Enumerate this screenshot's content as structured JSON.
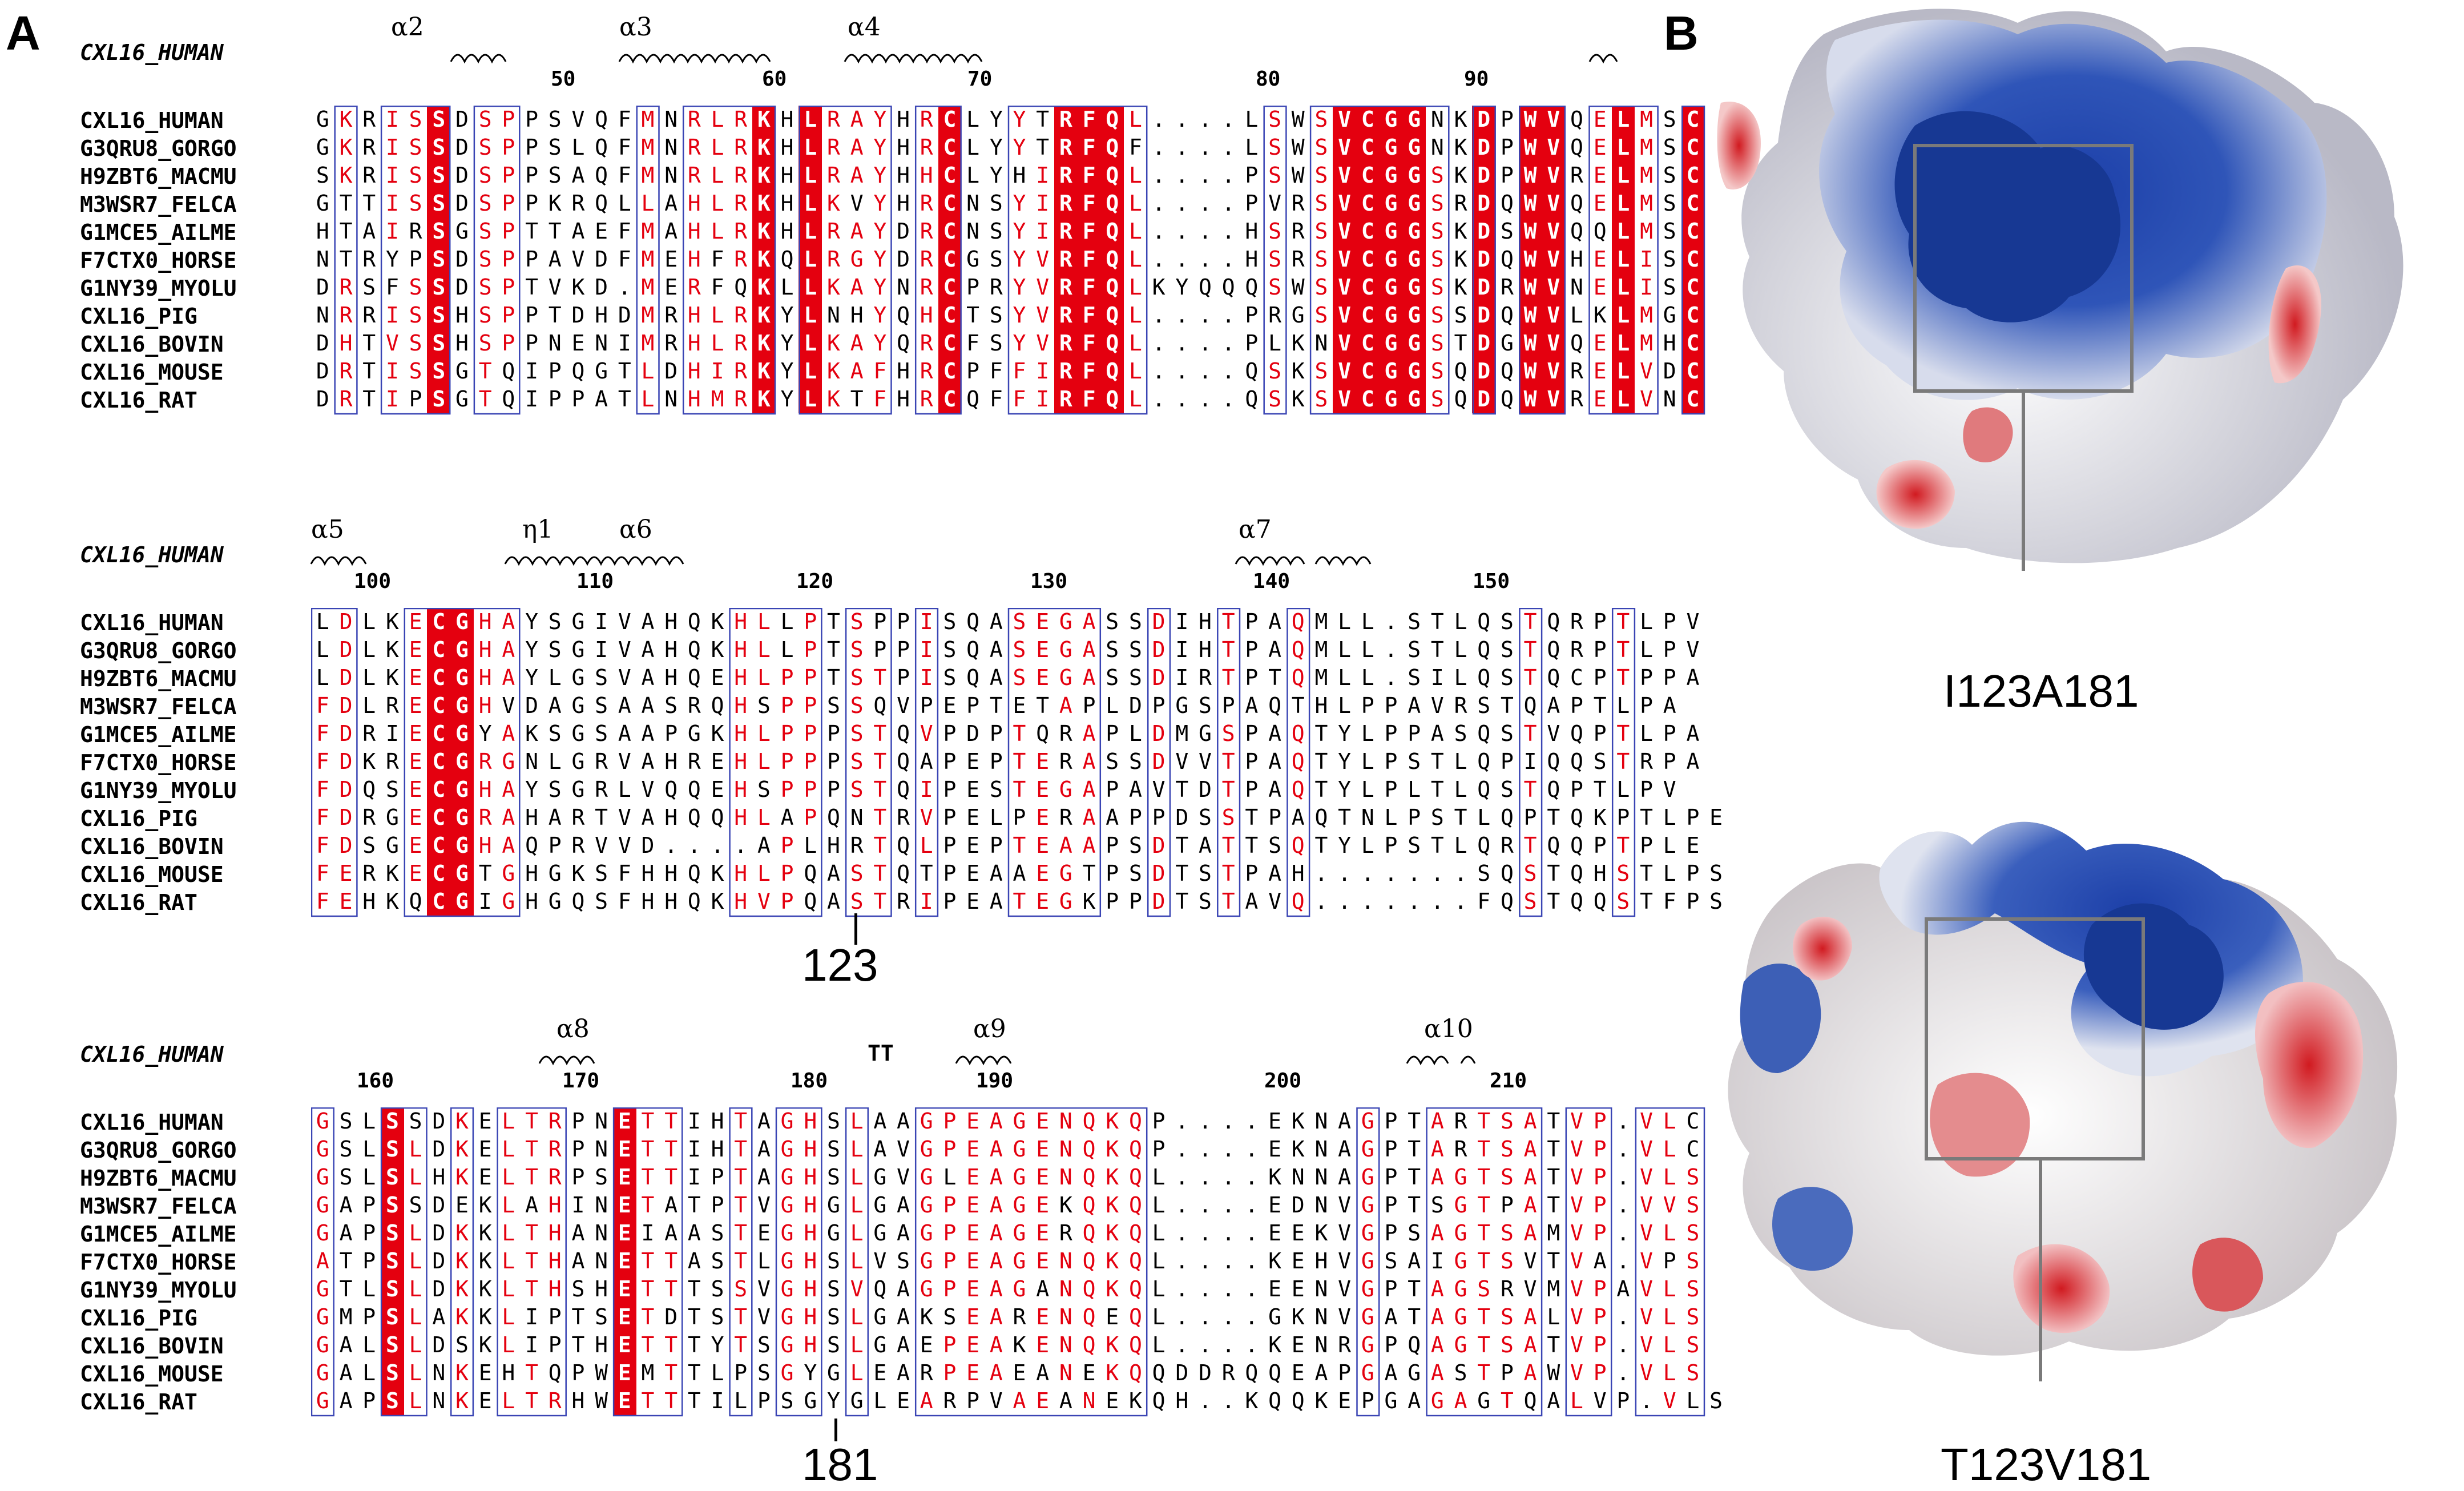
{
  "panels": {
    "a_label": "A",
    "b_label": "B"
  },
  "reference": "CXL16_HUMAN",
  "names": [
    "CXL16_HUMAN",
    "G3QRU8_GORGO",
    "H9ZBT6_MACMU",
    "M3WSR7_FELCA",
    "G1MCE5_AILME",
    "F7CTX0_HORSE",
    "G1NY39_MYOLU",
    "CXL16_PIG",
    "CXL16_BOVIN",
    "CXL16_MOUSE",
    "CXL16_RAT"
  ],
  "blocks": [
    {
      "ruler": [
        "50",
        "60",
        "70",
        "80",
        "90"
      ],
      "ss": [
        "α2",
        "α3",
        "α4"
      ],
      "sequences": [
        "GKRISSDSPPSVQFMNRLRKHLRAYHRCLYYTRFQL....LSWSVCGGNKDPWVQELMSC",
        "GKRISSDSPPSLQFMNRLRKHLRAYHRCLYYTRFQF....LSWSVCGGNKDPWVQELMSC",
        "SKRISSDSPPSAQFMNRLRKHLRAYHHCLYHIRFQL....PSWSVCGGSKDPWVRELMSC",
        "GTTISSDSPPKRQLLAHLRKHLKVYHRCNSYIRFQL....PVRSVCGGSRDQWVQELMSC",
        "HTAIRSGSPTTAEFMAHLRKHLRAYDRCNSYIRFQL....HSRSVCGGSKDSWVQQLMSC",
        "NTRYPSDSPPAVDFMEHFRKQLRGYDRCGSYVRFQL....HSRSVCGGSKDQWVHELISC",
        "DRSFSSDSPTVKD.MERFQKLLKAYNRCPRYVRFQLKYQQQSWSVCGGSKDRWVNELISC",
        "NRRISSHSPPTDHDMRHLRKYLNHYQHCTSYVRFQL....PRGSVCGGSSDQWVLKLMGC",
        "DHTVSSHSPPNENIMRHLRKYLKAYQRCFSYVRFQL....PLKNVCGGSTDGWVQELMHC",
        "DRTISSGTQIPQGTLDHIRKYLKAFHRCPFFIRFQL....QSKSVCGGSQDQWVRELVDC",
        "DRTIPSGTQIPPATLNHMRKYLKTFHRCQFFIRFQL....QSKSVCGGSQDQWVRELVNC"
      ]
    },
    {
      "ruler": [
        "100",
        "110",
        "120",
        "130",
        "140",
        "150"
      ],
      "ss": [
        "α5",
        "η1",
        "α6",
        "α7"
      ],
      "sequences": [
        "LDLKECGHAYSGIVAHQKHLLPTSPPISQASEGASSDIHTPAQMLL.STLQSTQRPTLPV",
        "LDLKECGHAYSGIVAHQKHLLPTSPPISQASEGASSDIHTPAQMLL.STLQSTQRPTLPV",
        "LDLKECGHAYLGSVAHQEHLPPTSTPISQASEGASSDIRTPTQMLL.SILQSTQCPTPPA",
        "FDLRECGHVDAGSAASRQHSPPSSQVPEPTETAPLDPGSPAQTHLPPAVRSTQAPTLPA",
        "FDRIECGYAKSGSAAPGKHLPPPSTQVPDPTQRAPLDMGSPAQTYLPPASQSTVQPTLPA",
        "FDKRECGRGNLGRVAHREHLPPPSTQAPEPTERASSDVVTPAQTYLPSTLQPIQQSTRPA",
        "FDQSECGHAYSGRLVQQEHSPPPSTQIPESTEGAPAVTDTPAQTYLPLTLQSTQPTLPV",
        "FDRGECGRAHARTVAHQQHLAPQNTRVPELPERAAPPDSSTPAQTNLPSTLQPTQKPTLPE",
        "FDSGECGHAQPRVVD....APLHRTQLPEPTEAAPSDTATTSQTYLPSTLQRTQQPTPLE",
        "FERKECGTGHGKSFHHQKHLPQASTQTPEAAEGTPSDTSTPAH.......SQSTQHSTLPS",
        "FEHKQCGIGHGQSFHHQKHVPQASTRIPEATEGKPPDTSTAVQ.......FQSTQQSTFPS"
      ]
    },
    {
      "ruler": [
        "160",
        "170",
        "180",
        "190",
        "200",
        "210"
      ],
      "ss": [
        "α8",
        "TT",
        "α9",
        "α10"
      ],
      "sequences": [
        "GSLSSDKELTRPNETTIHTAGHSLAAGPEAGENQKQP....EKNAGPTARTSATVP.VLC",
        "GSLSLDKELTRPNETTIHTAGHSLAVGPEAGENQKQP....EKNAGPTARTSATVP.VLC",
        "GSLSLHKELTRPSETTIPTAGHSLGVGLEAGENQKQL....KNNAGPTAGTSATVP.VLS",
        "GAPSSDEKLAHINETATPTVGHGLGAGPEAGEKQKQL....EDNVGPTSGTPATVP.VVS",
        "GAPSLDKKLTHANEIAASTEGHGLGAGPEAGERQKQL....EEKVGPSAGTSAMVP.VLS",
        "ATPSLDKKLTHANETTASTLGHSLVSGPEAGENQKQL....KEHVGSAIGTSVTVA.VPS",
        "GTLSLDKKLTHSHETTTSSVGHSVQAGPEAGANQKQL....EENVGPTAGSRVMVPAVLS",
        "GMPSLAKKLIPTSETDTSTVGHSLGAKSEARENQEQL....GKNVGATAGTSALVP.VLS",
        "GALSLDSKLIPTHETTTYTSGHSLGAEPEAKENQKQL....KENRGPQAGTSATVP.VLS",
        "GALSLNKEHTQPWEMTTLPSGYGLEARPEAEANEKQQDDRQQEAPGAGASTPAWVP.VLS",
        "GAPSLNKELTRHWETTTILPSGYGLEARPVAEANEKQH..KQQKEPGAGAGTQALVP.VLS"
      ]
    }
  ],
  "markers": {
    "block2": "123",
    "block3": "181"
  },
  "panel_b": {
    "top_label": "I123A181",
    "bottom_label": "T123V181"
  },
  "colors": {
    "identical": "#e4000f",
    "similar": "#e4000f",
    "box": "#3a45b4",
    "positive": "#1c3fa8",
    "negative": "#d11a20",
    "neutral": "#f2f2f2"
  }
}
